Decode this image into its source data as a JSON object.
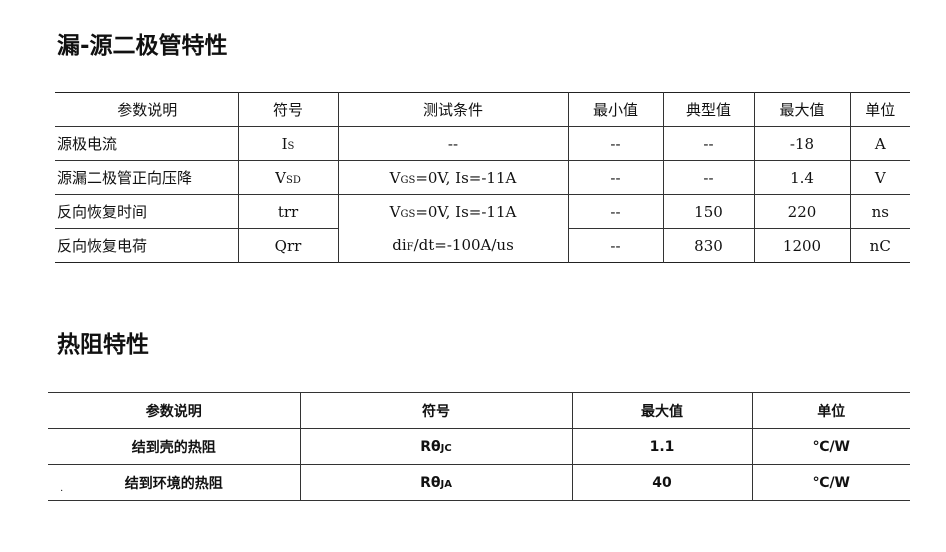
{
  "section1": {
    "title": "漏-源二极管特性",
    "headers": [
      "参数说明",
      "符号",
      "测试条件",
      "最小值",
      "典型值",
      "最大值",
      "单位"
    ],
    "rows": [
      {
        "param": "源极电流",
        "sym": "I",
        "sym_sub": "S",
        "cond": "--",
        "min": "--",
        "typ": "--",
        "max": "-18",
        "unit": "A"
      },
      {
        "param": "源漏二极管正向压降",
        "sym": "V",
        "sym_sub": "SD",
        "cond_a": "V",
        "cond_sub": "GS",
        "cond_b": "=0V, Is=-11A",
        "min": "--",
        "typ": "--",
        "max": "1.4",
        "unit": "V"
      },
      {
        "param": "反向恢复时间",
        "sym": "trr",
        "cond_a": "V",
        "cond_sub": "GS",
        "cond_b": "=0V, Is=-11A",
        "min": "--",
        "typ": "150",
        "max": "220",
        "unit": "ns"
      },
      {
        "param": "反向恢复电荷",
        "sym": "Qrr",
        "cond_a": "di",
        "cond_sub": "F",
        "cond_b": "/dt=-100A/us",
        "min": "--",
        "typ": "830",
        "max": "1200",
        "unit": "nC"
      }
    ]
  },
  "section2": {
    "title": "热阻特性",
    "headers": [
      "参数说明",
      "符号",
      "最大值",
      "单位"
    ],
    "rows": [
      {
        "param": "结到壳的热阻",
        "sym": "Rθ",
        "sym_sub": "JC",
        "max": "1.1",
        "unit": "℃/W"
      },
      {
        "param": "结到环境的热阻",
        "sym": "Rθ",
        "sym_sub": "JA",
        "max": "40",
        "unit": "℃/W"
      }
    ],
    "stray_mark": "·"
  }
}
